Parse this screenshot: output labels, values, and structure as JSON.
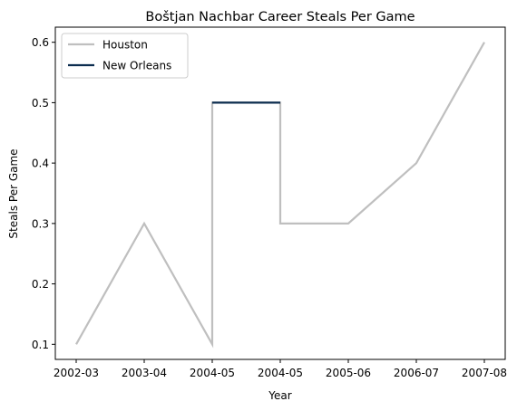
{
  "chart_data": {
    "type": "line",
    "title": "Boštjan Nachbar Career Steals Per Game",
    "xlabel": "Year",
    "ylabel": "Steals Per Game",
    "x": [
      "2002-03",
      "2003-04",
      "2004-05",
      "2004-05",
      "2005-06",
      "2006-07",
      "2007-08"
    ],
    "y_ticks": [
      0.1,
      0.2,
      0.3,
      0.4,
      0.5,
      0.6
    ],
    "ylim": [
      0.075,
      0.625
    ],
    "grid": false,
    "legend_position": "top-left",
    "series": [
      {
        "name": "Houston",
        "color": "#bfbfbf",
        "points": [
          {
            "x": "2002-03",
            "y": 0.1
          },
          {
            "x": "2003-04",
            "y": 0.3
          },
          {
            "x": "2004-05",
            "y": 0.1
          },
          {
            "x": "2004-05",
            "y": 0.5
          },
          {
            "x": "2004-05",
            "y": 0.5
          },
          {
            "x": "2004-05",
            "y": 0.3
          },
          {
            "x": "2005-06",
            "y": 0.3
          },
          {
            "x": "2006-07",
            "y": 0.4
          },
          {
            "x": "2007-08",
            "y": 0.6
          }
        ]
      },
      {
        "name": "New Orleans",
        "color": "#0c2d4f",
        "points": [
          {
            "x": "2004-05",
            "y": 0.5
          },
          {
            "x": "2004-05",
            "y": 0.5
          }
        ]
      }
    ]
  }
}
